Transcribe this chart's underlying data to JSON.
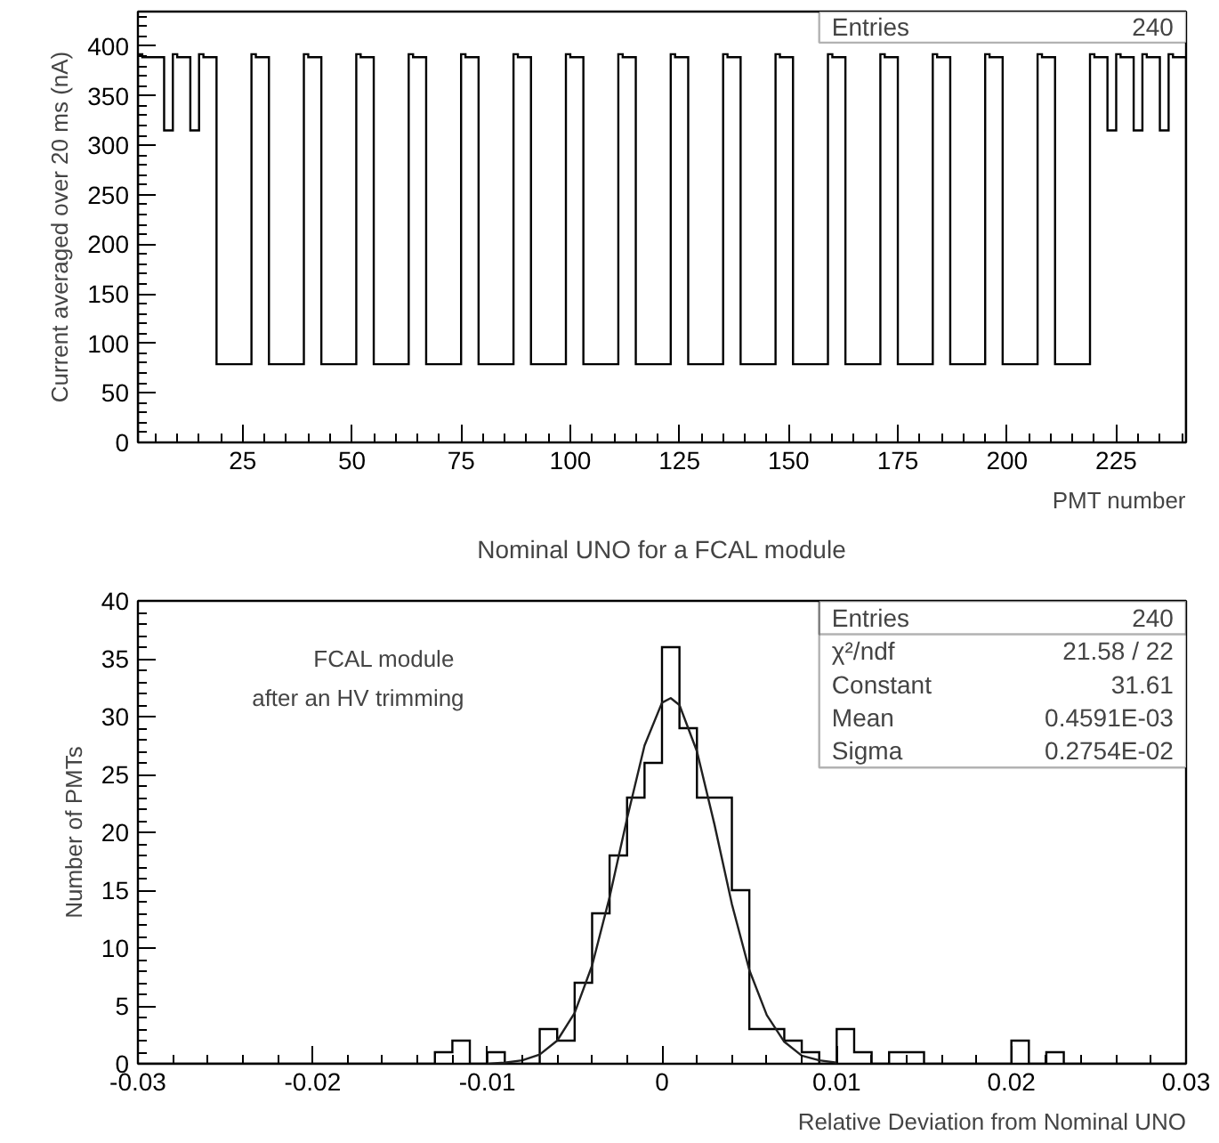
{
  "chart_data": [
    {
      "type": "histogram",
      "title": "Nominal UNO for a FCAL module",
      "xlabel": "PMT number",
      "ylabel": "Current averaged over 20 ms (nA)",
      "color": "#000000",
      "bins": [
        1,
        2,
        3,
        4,
        5,
        6,
        7,
        8,
        9,
        10,
        11,
        12,
        13,
        14,
        15,
        16,
        17,
        18,
        19,
        20,
        21,
        22,
        23,
        24,
        25,
        26,
        27,
        28,
        29,
        30,
        31,
        32,
        33,
        34,
        35,
        36,
        37,
        38,
        39,
        40,
        41,
        42,
        43,
        44,
        45,
        46,
        47,
        48,
        49,
        50,
        51,
        52,
        53,
        54,
        55,
        56,
        57,
        58,
        59,
        60,
        61,
        62,
        63,
        64,
        65,
        66,
        67,
        68,
        69,
        70,
        71,
        72,
        73,
        74,
        75,
        76,
        77,
        78,
        79,
        80,
        81,
        82,
        83,
        84,
        85,
        86,
        87,
        88,
        89,
        90,
        91,
        92,
        93,
        94,
        95,
        96,
        97,
        98,
        99,
        100,
        101,
        102,
        103,
        104,
        105,
        106,
        107,
        108,
        109,
        110,
        111,
        112,
        113,
        114,
        115,
        116,
        117,
        118,
        119,
        120,
        121,
        122,
        123,
        124,
        125,
        126,
        127,
        128,
        129,
        130,
        131,
        132,
        133,
        134,
        135,
        136,
        137,
        138,
        139,
        140,
        141,
        142,
        143,
        144,
        145,
        146,
        147,
        148,
        149,
        150,
        151,
        152,
        153,
        154,
        155,
        156,
        157,
        158,
        159,
        160,
        161,
        162,
        163,
        164,
        165,
        166,
        167,
        168,
        169,
        170,
        171,
        172,
        173,
        174,
        175,
        176,
        177,
        178,
        179,
        180,
        181,
        182,
        183,
        184,
        185,
        186,
        187,
        188,
        189,
        190,
        191,
        192,
        193,
        194,
        195,
        196,
        197,
        198,
        199,
        200,
        201,
        202,
        203,
        204,
        205,
        206,
        207,
        208,
        209,
        210,
        211,
        212,
        213,
        214,
        215,
        216,
        217,
        218,
        219,
        220,
        221,
        222,
        223,
        224,
        225,
        226,
        227,
        228,
        229,
        230,
        231,
        232,
        233,
        234,
        235,
        236,
        237,
        238,
        239,
        240,
        241
      ],
      "values": [
        392,
        389,
        389,
        389,
        389,
        389,
        315,
        315,
        392,
        389,
        389,
        389,
        315,
        315,
        392,
        389,
        389,
        389,
        79,
        79,
        79,
        79,
        79,
        79,
        79,
        79,
        392,
        389,
        389,
        389,
        79,
        79,
        79,
        79,
        79,
        79,
        79,
        79,
        392,
        389,
        389,
        389,
        79,
        79,
        79,
        79,
        79,
        79,
        79,
        79,
        392,
        389,
        389,
        389,
        79,
        79,
        79,
        79,
        79,
        79,
        79,
        79,
        392,
        389,
        389,
        389,
        79,
        79,
        79,
        79,
        79,
        79,
        79,
        79,
        392,
        389,
        389,
        389,
        79,
        79,
        79,
        79,
        79,
        79,
        79,
        79,
        392,
        389,
        389,
        389,
        79,
        79,
        79,
        79,
        79,
        79,
        79,
        79,
        392,
        389,
        389,
        389,
        79,
        79,
        79,
        79,
        79,
        79,
        79,
        79,
        392,
        389,
        389,
        389,
        79,
        79,
        79,
        79,
        79,
        79,
        79,
        79,
        392,
        389,
        389,
        389,
        79,
        79,
        79,
        79,
        79,
        79,
        79,
        79,
        392,
        389,
        389,
        389,
        79,
        79,
        79,
        79,
        79,
        79,
        79,
        79,
        392,
        389,
        389,
        389,
        79,
        79,
        79,
        79,
        79,
        79,
        79,
        79,
        392,
        389,
        389,
        389,
        79,
        79,
        79,
        79,
        79,
        79,
        79,
        79,
        392,
        389,
        389,
        389,
        79,
        79,
        79,
        79,
        79,
        79,
        79,
        79,
        392,
        389,
        389,
        389,
        79,
        79,
        79,
        79,
        79,
        79,
        79,
        79,
        392,
        389,
        389,
        389,
        79,
        79,
        79,
        79,
        79,
        79,
        79,
        79,
        392,
        389,
        389,
        389,
        79,
        79,
        79,
        79,
        79,
        79,
        79,
        79,
        392,
        389,
        389,
        389,
        315,
        315,
        392,
        389,
        389,
        389,
        315,
        315,
        392,
        389,
        389,
        389,
        315,
        315,
        392,
        389,
        389,
        389
      ],
      "xlim": [
        1,
        241
      ],
      "ylim": [
        0,
        435
      ],
      "xticks": [
        25,
        50,
        75,
        100,
        125,
        150,
        175,
        200,
        225
      ],
      "yticks": [
        0,
        50,
        100,
        150,
        200,
        250,
        300,
        350,
        400
      ],
      "annotations": [
        "Entries 240"
      ]
    },
    {
      "type": "histogram",
      "title": "FCAL module",
      "subtitle": "after an HV trimming",
      "xlabel": "Relative Deviation from Nominal UNO",
      "ylabel": "Number of PMTs",
      "bins": [
        -0.03,
        -0.029,
        -0.028,
        -0.027,
        -0.026,
        -0.025,
        -0.024,
        -0.023,
        -0.022,
        -0.021,
        -0.02,
        -0.019,
        -0.018,
        -0.017,
        -0.016,
        -0.015,
        -0.014,
        -0.013,
        -0.012,
        -0.011,
        -0.01,
        -0.009,
        -0.008,
        -0.007,
        -0.006,
        -0.005,
        -0.004,
        -0.003,
        -0.002,
        -0.001,
        0,
        0.001,
        0.002,
        0.003,
        0.004,
        0.005,
        0.006,
        0.007,
        0.008,
        0.009,
        0.01,
        0.011,
        0.012,
        0.013,
        0.014,
        0.015,
        0.016,
        0.017,
        0.018,
        0.019,
        0.02,
        0.021,
        0.022,
        0.023,
        0.024,
        0.025,
        0.026,
        0.027,
        0.028,
        0.029,
        0.03
      ],
      "series": [
        {
          "type": "histogram",
          "color": "#000000",
          "values": [
            0,
            0,
            0,
            0,
            0,
            0,
            0,
            0,
            0,
            0,
            0,
            0,
            0,
            0,
            0,
            0,
            0,
            1,
            2,
            0,
            1,
            0,
            0,
            3,
            2,
            7,
            13,
            18,
            23,
            26,
            36,
            29,
            23,
            23,
            15,
            3,
            3,
            2,
            1,
            0,
            3,
            1,
            0,
            1,
            1,
            0,
            0,
            0,
            0,
            0,
            2,
            0,
            1,
            0,
            0,
            0,
            0,
            0,
            0,
            0
          ]
        },
        {
          "type": "line",
          "color": "#202020",
          "x": [
            -0.01,
            -0.009,
            -0.008,
            -0.007,
            -0.006,
            -0.005,
            -0.004,
            -0.003,
            -0.002,
            -0.001,
            0,
            0.0005,
            0.001,
            0.002,
            0.003,
            0.004,
            0.005,
            0.006,
            0.007,
            0.008,
            0.009,
            0.01
          ],
          "values": [
            0.0,
            0.1,
            0.3,
            0.8,
            2.0,
            4.4,
            8.5,
            14.4,
            21.2,
            27.5,
            31.2,
            31.6,
            31.0,
            27.0,
            20.7,
            13.8,
            8.1,
            4.2,
            1.9,
            0.7,
            0.3,
            0.1
          ]
        }
      ],
      "xlim": [
        -0.03,
        0.03
      ],
      "ylim": [
        0,
        40
      ],
      "xticks": [
        -0.03,
        -0.02,
        -0.01,
        0,
        0.01,
        0.02,
        0.03
      ],
      "yticks": [
        0,
        5,
        10,
        15,
        20,
        25,
        30,
        35,
        40
      ],
      "annotations": [
        "Entries 240",
        "χ²/ndf 21.58 / 22",
        "Constant 31.61",
        "Mean 0.4591E-03",
        "Sigma 0.2754E-02"
      ]
    }
  ]
}
